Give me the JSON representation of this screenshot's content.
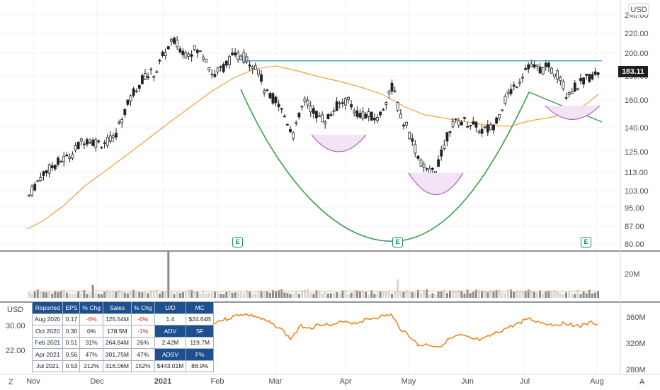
{
  "chart_data": {
    "type": "candlestick",
    "currency_label": "USD",
    "last_price": "183.11",
    "price_axis_ticks": [
      "240.00",
      "220.00",
      "200.00",
      "180.00",
      "160.00",
      "140.00",
      "125.00",
      "113.00",
      "103.00",
      "95.00",
      "87.00",
      "80.00"
    ],
    "volume_axis_ticks": [
      "20M"
    ],
    "lower_right_ticks": [
      "360M",
      "320M",
      "280M"
    ],
    "lower_left_ticks": [
      "30.00",
      "22.00"
    ],
    "lower_left_currency": "USD",
    "time_axis_ticks": [
      "Nov",
      "Dec",
      "2021",
      "Feb",
      "Mar",
      "Apr",
      "May",
      "Jun",
      "Jul",
      "Aug"
    ],
    "earnings_marker": "E",
    "corner_left": "Z",
    "corner_right": "A",
    "resistance_level": 193,
    "table": {
      "headers": [
        "Reported",
        "EPS",
        "% Chg",
        "Sales",
        "% Chg"
      ],
      "rows": [
        [
          "Aug 2020",
          "0.17",
          "-6%",
          "125.54M",
          "-6%"
        ],
        [
          "Oct 2020",
          "0.30",
          "0%",
          "178.5M",
          "-1%"
        ],
        [
          "Feb 2021",
          "0.51",
          "31%",
          "264.84M",
          "26%"
        ],
        [
          "Apr 2021",
          "0.56",
          "47%",
          "301.75M",
          "47%"
        ],
        [
          "Jul 2021",
          "0.53",
          "212%",
          "316.06M",
          "152%"
        ]
      ],
      "side": [
        [
          "U/D",
          "MC"
        ],
        [
          "1.4",
          "$24.64B"
        ],
        [
          "ADV",
          "SF"
        ],
        [
          "2.42M",
          "119.7M"
        ],
        [
          "ADSV",
          "F%"
        ],
        [
          "$443.01M",
          "88.9%"
        ]
      ]
    }
  }
}
